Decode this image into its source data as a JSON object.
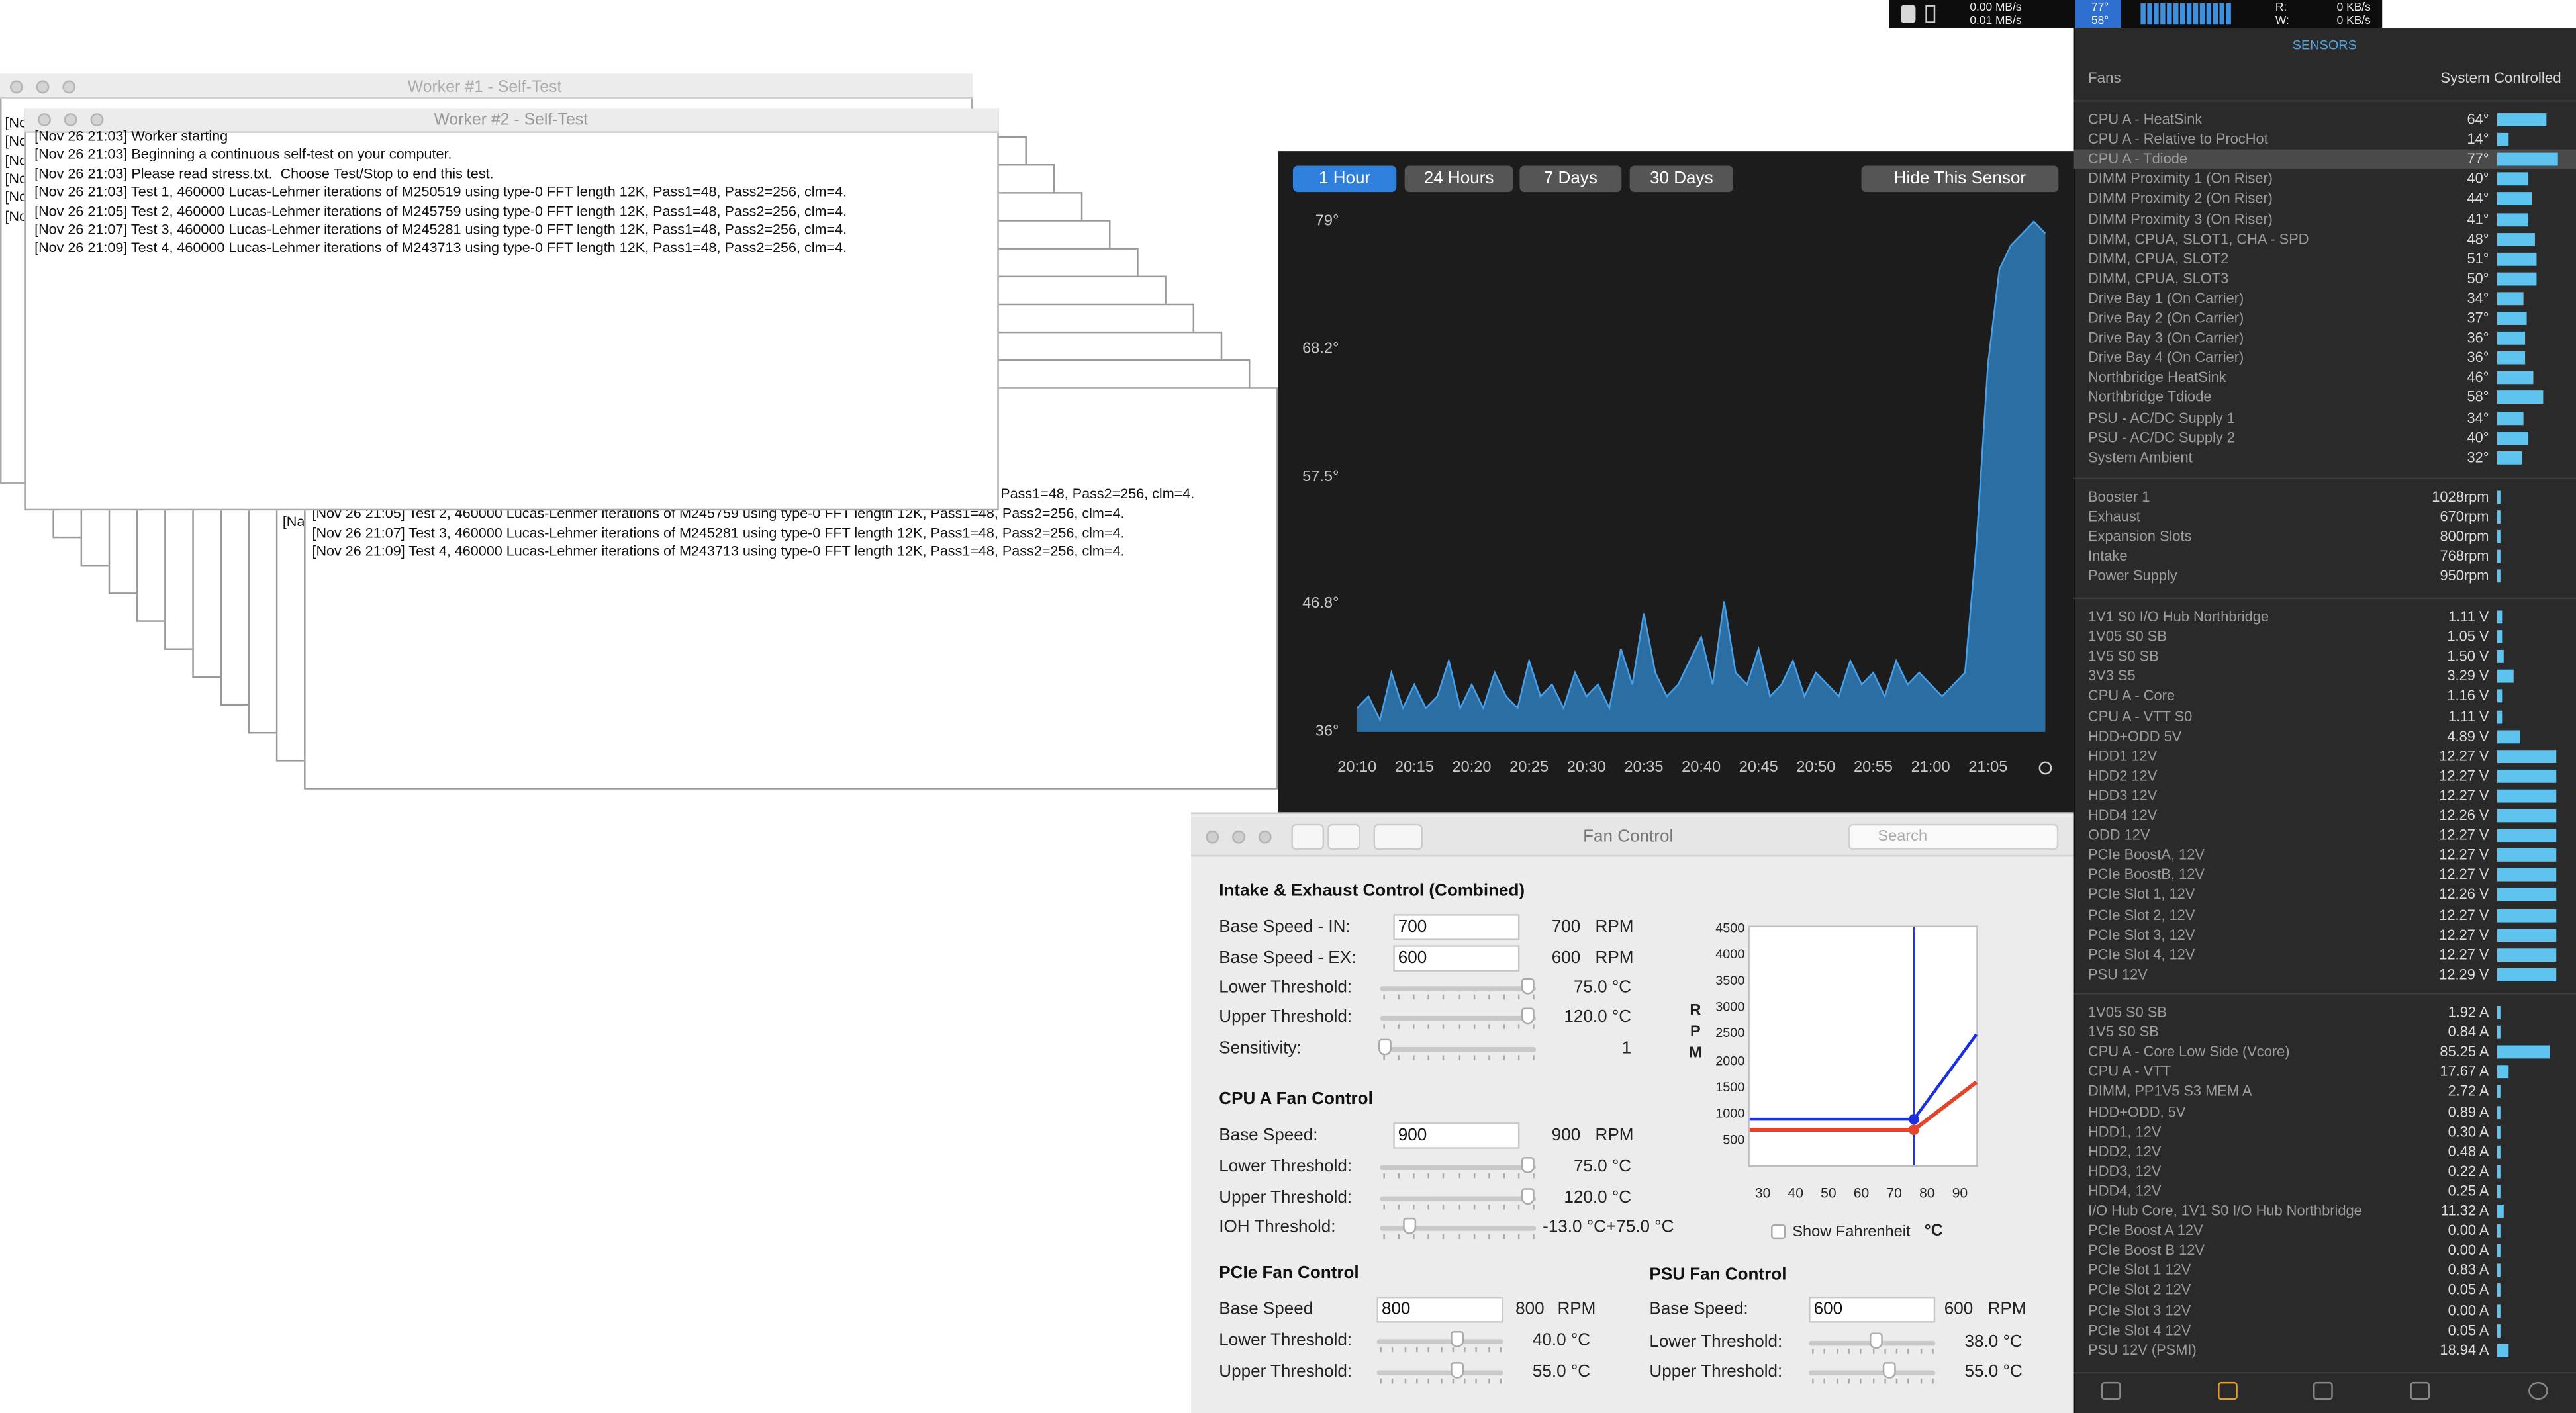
{
  "menubar": {
    "net_up": "0.00 MB/s",
    "net_down": "0.01 MB/s",
    "temp_1": "77°",
    "temp_2": "58°",
    "read_label": "R:",
    "write_label": "W:",
    "read": "0 KB/s",
    "write": "0 KB/s"
  },
  "workers": {
    "worker1_title": "Worker #1 - Self-Test",
    "worker2_title": "Worker #2 - Self-Test",
    "worker1_fragments": [
      "[No",
      "[No",
      "[No",
      "[No",
      "[No",
      "[No"
    ],
    "worker2_log": [
      "[Nov 26 21:03] Worker starting",
      "[Nov 26 21:03] Beginning a continuous self-test on your computer.",
      "[Nov 26 21:03] Please read stress.txt.  Choose Test/Stop to end this test.",
      "[Nov 26 21:03] Test 1, 460000 Lucas-Lehmer iterations of M250519 using type-0 FFT length 12K, Pass1=48, Pass2=256, clm=4.",
      "[Nov 26 21:05] Test 2, 460000 Lucas-Lehmer iterations of M245759 using type-0 FFT length 12K, Pass1=48, Pass2=256, clm=4.",
      "[Nov 26 21:07] Test 3, 460000 Lucas-Lehmer iterations of M245281 using type-0 FFT length 12K, Pass1=48, Pass2=256, clm=4.",
      "[Nov 26 21:09] Test 4, 460000 Lucas-Lehmer iterations of M243713 using type-0 FFT length 12K, Pass1=48, Pass2=256, clm=4."
    ],
    "back_fragment": "Pass1=48, Pass2=256, clm=4.",
    "back_fragment_left": "[Na",
    "back_log": [
      "[Nov 26 21:05] Test 2, 460000 Lucas-Lehmer iterations of M245759 using type-0 FFT length 12K, Pass1=48, Pass2=256, clm=4.",
      "[Nov 26 21:07] Test 3, 460000 Lucas-Lehmer iterations of M245281 using type-0 FFT length 12K, Pass1=48, Pass2=256, clm=4.",
      "[Nov 26 21:09] Test 4, 460000 Lucas-Lehmer iterations of M243713 using type-0 FFT length 12K, Pass1=48, Pass2=256, clm=4."
    ]
  },
  "history_controls": {
    "ranges": [
      "1 Hour",
      "24 Hours",
      "7 Days",
      "30 Days"
    ],
    "hide": "Hide This Sensor"
  },
  "chart_data": {
    "type": "area",
    "x": [
      "20:10",
      "20:11",
      "20:12",
      "20:13",
      "20:14",
      "20:15",
      "20:16",
      "20:17",
      "20:18",
      "20:19",
      "20:20",
      "20:21",
      "20:22",
      "20:23",
      "20:24",
      "20:25",
      "20:26",
      "20:27",
      "20:28",
      "20:29",
      "20:30",
      "20:31",
      "20:32",
      "20:33",
      "20:34",
      "20:35",
      "20:36",
      "20:37",
      "20:38",
      "20:39",
      "20:40",
      "20:41",
      "20:42",
      "20:43",
      "20:44",
      "20:45",
      "20:46",
      "20:47",
      "20:48",
      "20:49",
      "20:50",
      "20:51",
      "20:52",
      "20:53",
      "20:54",
      "20:55",
      "20:56",
      "20:57",
      "20:58",
      "20:59",
      "21:00",
      "21:01",
      "21:02",
      "21:03",
      "21:04",
      "21:05",
      "21:06",
      "21:07",
      "21:08",
      "21:09",
      "21:10"
    ],
    "series": [
      {
        "color": "#2b6ea3",
        "values": [
          38,
          39,
          37,
          41,
          38,
          40,
          38,
          39,
          42,
          38,
          40,
          38,
          41,
          39,
          38,
          42,
          39,
          40,
          38,
          41,
          39,
          40,
          38,
          43,
          40,
          46,
          41,
          39,
          40,
          42,
          44,
          40,
          47,
          41,
          40,
          43,
          39,
          40,
          42,
          39,
          41,
          40,
          39,
          42,
          40,
          41,
          39,
          42,
          40,
          41,
          40,
          39,
          40,
          41,
          52,
          67,
          75,
          77,
          78,
          79,
          78
        ]
      }
    ],
    "ylim": [
      36,
      79
    ],
    "yticks": [
      {
        "value": 36,
        "label": "36°"
      },
      {
        "value": 46.8,
        "label": "46.8°"
      },
      {
        "value": 57.5,
        "label": "57.5°"
      },
      {
        "value": 68.2,
        "label": "68.2°"
      },
      {
        "value": 79,
        "label": "79°"
      }
    ],
    "xticks": [
      "20:10",
      "20:15",
      "20:20",
      "20:25",
      "20:30",
      "20:35",
      "20:40",
      "20:45",
      "20:50",
      "20:55",
      "21:00",
      "21:05"
    ]
  },
  "fan_control": {
    "title": "Fan Control",
    "search": "Search",
    "intake": {
      "heading": "Intake & Exhaust Control (Combined)",
      "base_in": {
        "label": "Base Speed - IN:",
        "input": "700",
        "value": "700",
        "unit": "RPM"
      },
      "base_ex": {
        "label": "Base Speed - EX:",
        "input": "600",
        "value": "600",
        "unit": "RPM"
      },
      "lower": {
        "label": "Lower Threshold:",
        "value": "75.0 °C"
      },
      "upper": {
        "label": "Upper Threshold:",
        "value": "120.0 °C"
      },
      "sensitivity": {
        "label": "Sensitivity:",
        "value": "1"
      }
    },
    "cpu": {
      "heading": "CPU A Fan Control",
      "base": {
        "label": "Base Speed:",
        "input": "900",
        "value": "900",
        "unit": "RPM"
      },
      "lower": {
        "label": "Lower Threshold:",
        "value": "75.0 °C"
      },
      "upper": {
        "label": "Upper Threshold:",
        "value": "120.0 °C"
      },
      "ioh": {
        "label": "IOH Threshold:",
        "value": "-13.0 °C+75.0 °C"
      }
    },
    "pcie": {
      "heading": "PCIe Fan Control",
      "base": {
        "label": "Base Speed",
        "input": "800",
        "value": "800",
        "unit": "RPM"
      },
      "lower": {
        "label": "Lower Threshold:",
        "value": "40.0 °C"
      },
      "upper": {
        "label": "Upper Threshold:",
        "value": "55.0 °C"
      }
    },
    "psu": {
      "heading": "PSU Fan Control",
      "base": {
        "label": "Base Speed:",
        "input": "600",
        "value": "600",
        "unit": "RPM"
      },
      "lower": {
        "label": "Lower Threshold:",
        "value": "38.0 °C"
      },
      "upper": {
        "label": "Upper Threshold:",
        "value": "55.0 °C"
      }
    },
    "graph": {
      "axis_label": [
        "R",
        "P",
        "M"
      ],
      "xlim": [
        26,
        95
      ],
      "ylim": [
        0,
        4560
      ],
      "xticks": [
        30,
        40,
        50,
        60,
        70,
        80,
        90
      ],
      "yticks": [
        500,
        1000,
        1500,
        2000,
        2500,
        3000,
        3500,
        4000,
        4500
      ],
      "series": [
        {
          "color": "#1a2fe0",
          "x": [
            26,
            76,
            95
          ],
          "values": [
            900,
            900,
            2500
          ]
        },
        {
          "color": "#e2452c",
          "x": [
            26,
            76,
            95
          ],
          "values": [
            700,
            700,
            1600
          ]
        }
      ],
      "show_fahrenheit": "Show Fahrenheit",
      "unit": "°C"
    }
  },
  "sensors": {
    "header": "SENSORS",
    "fans_label": "Fans",
    "fans_mode": "System Controlled",
    "temperatures": [
      [
        "CPU A - HeatSink",
        "64°"
      ],
      [
        "CPU A - Relative to ProcHot",
        "14°"
      ],
      [
        "CPU A - Tdiode",
        "77°"
      ],
      [
        "DIMM Proximity 1 (On Riser)",
        "40°"
      ],
      [
        "DIMM Proximity 2 (On Riser)",
        "44°"
      ],
      [
        "DIMM Proximity 3 (On Riser)",
        "41°"
      ],
      [
        "DIMM, CPUA, SLOT1, CHA - SPD",
        "48°"
      ],
      [
        "DIMM, CPUA, SLOT2",
        "51°"
      ],
      [
        "DIMM, CPUA, SLOT3",
        "50°"
      ],
      [
        "Drive Bay 1 (On Carrier)",
        "34°"
      ],
      [
        "Drive Bay 2 (On Carrier)",
        "37°"
      ],
      [
        "Drive Bay 3 (On Carrier)",
        "36°"
      ],
      [
        "Drive Bay 4 (On Carrier)",
        "36°"
      ],
      [
        "Northbridge HeatSink",
        "46°"
      ],
      [
        "Northbridge Tdiode",
        "58°"
      ],
      [
        "PSU - AC/DC Supply 1",
        "34°"
      ],
      [
        "PSU - AC/DC Supply 2",
        "40°"
      ],
      [
        "System Ambient",
        "32°"
      ]
    ],
    "fans": [
      [
        "Booster 1",
        "1028rpm"
      ],
      [
        "Exhaust",
        "670rpm"
      ],
      [
        "Expansion Slots",
        "800rpm"
      ],
      [
        "Intake",
        "768rpm"
      ],
      [
        "Power Supply",
        "950rpm"
      ]
    ],
    "volts": [
      [
        "1V1 S0 I/O Hub Northbridge",
        "1.11 V"
      ],
      [
        "1V05 S0 SB",
        "1.05 V"
      ],
      [
        "1V5 S0 SB",
        "1.50 V"
      ],
      [
        "3V3 S5",
        "3.29 V"
      ],
      [
        "CPU A - Core",
        "1.16 V"
      ],
      [
        "CPU A - VTT S0",
        "1.11 V"
      ],
      [
        "HDD+ODD 5V",
        "4.89 V"
      ],
      [
        "HDD1 12V",
        "12.27 V"
      ],
      [
        "HDD2 12V",
        "12.27 V"
      ],
      [
        "HDD3 12V",
        "12.27 V"
      ],
      [
        "HDD4 12V",
        "12.26 V"
      ],
      [
        "ODD 12V",
        "12.27 V"
      ],
      [
        "PCIe BoostA, 12V",
        "12.27 V"
      ],
      [
        "PCIe BoostB, 12V",
        "12.27 V"
      ],
      [
        "PCIe Slot 1, 12V",
        "12.26 V"
      ],
      [
        "PCIe Slot 2, 12V",
        "12.27 V"
      ],
      [
        "PCIe Slot 3, 12V",
        "12.27 V"
      ],
      [
        "PCIe Slot 4, 12V",
        "12.27 V"
      ],
      [
        "PSU 12V",
        "12.29 V"
      ]
    ],
    "amps": [
      [
        "1V05 S0 SB",
        "1.92 A"
      ],
      [
        "1V5 S0 SB",
        "0.84 A"
      ],
      [
        "CPU A - Core Low Side (Vcore)",
        "85.25 A"
      ],
      [
        "CPU A - VTT",
        "17.67 A"
      ],
      [
        "DIMM, PP1V5 S3 MEM A",
        "2.72 A"
      ],
      [
        "HDD+ODD, 5V",
        "0.89 A"
      ],
      [
        "HDD1, 12V",
        "0.30 A"
      ],
      [
        "HDD2, 12V",
        "0.48 A"
      ],
      [
        "HDD3, 12V",
        "0.22 A"
      ],
      [
        "HDD4, 12V",
        "0.25 A"
      ],
      [
        "I/O Hub Core, 1V1 S0 I/O Hub Northbridge",
        "11.32 A"
      ],
      [
        "PCIe Boost A 12V",
        "0.00 A"
      ],
      [
        "PCIe Boost B 12V",
        "0.00 A"
      ],
      [
        "PCIe Slot 1 12V",
        "0.83 A"
      ],
      [
        "PCIe Slot 2 12V",
        "0.05 A"
      ],
      [
        "PCIe Slot 3 12V",
        "0.00 A"
      ],
      [
        "PCIe Slot 4 12V",
        "0.05 A"
      ],
      [
        "PSU 12V (PSMI)",
        "18.94 A"
      ]
    ]
  }
}
